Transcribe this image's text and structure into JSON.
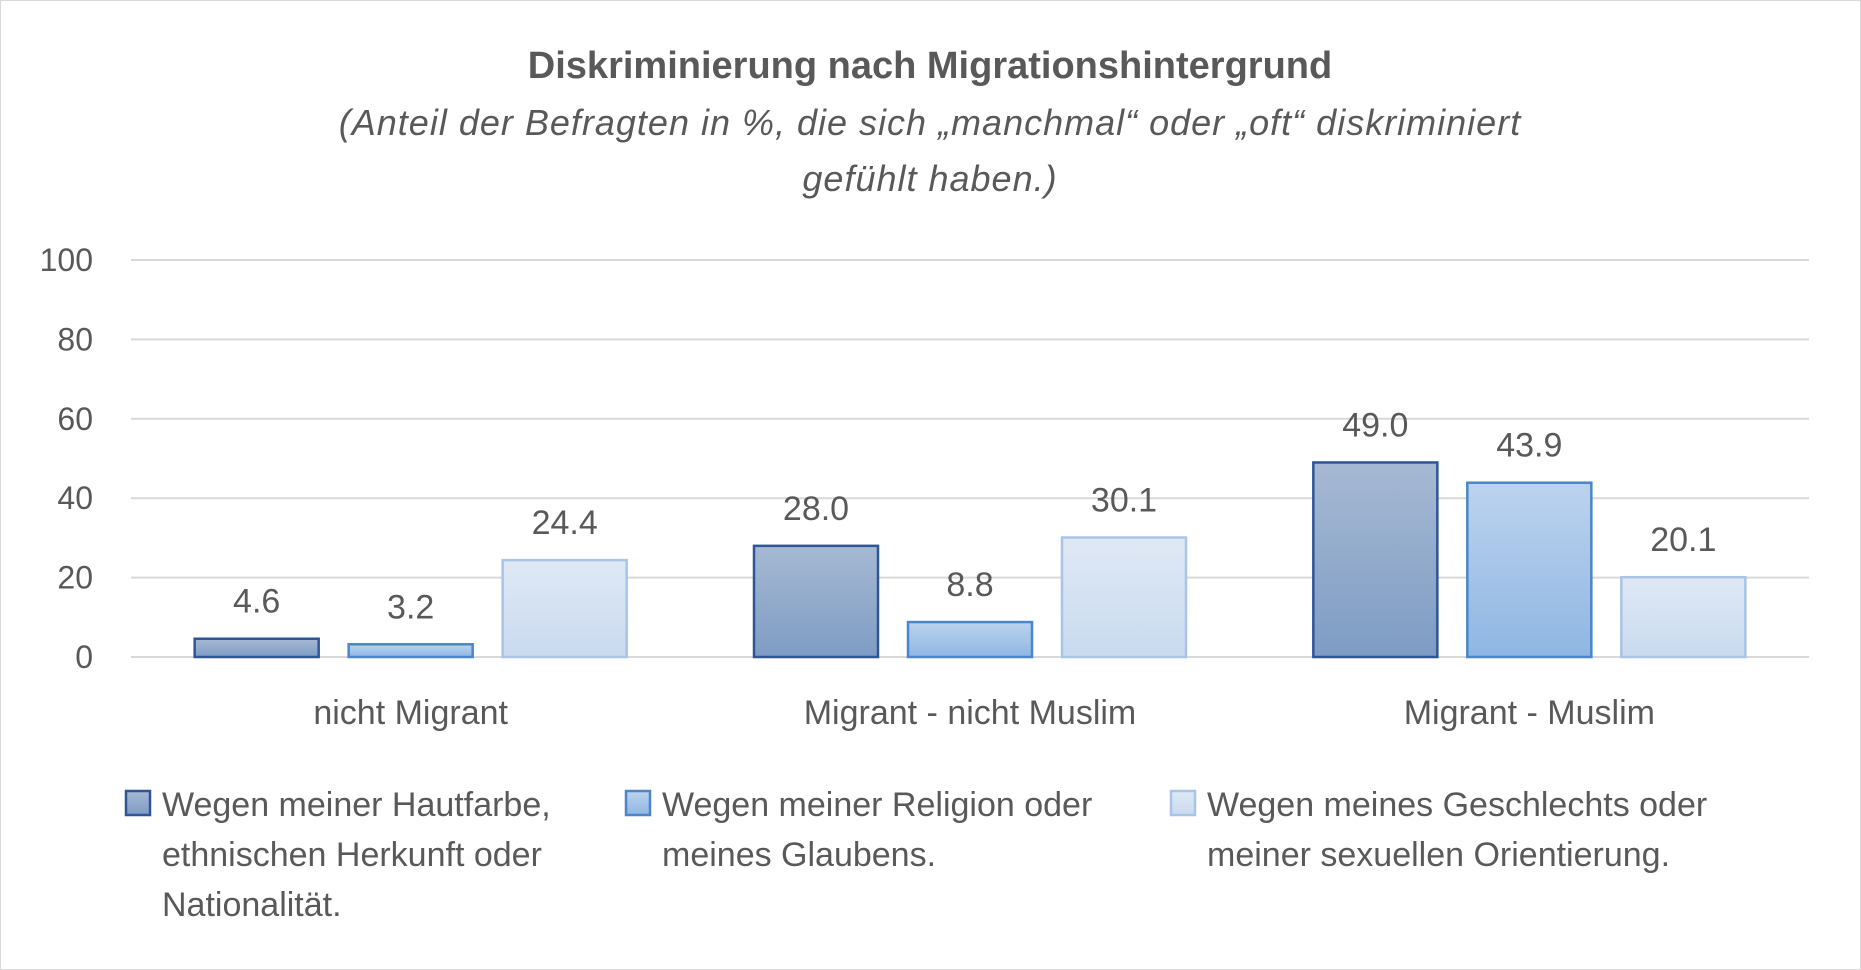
{
  "chart_data": {
    "type": "bar",
    "title": "Diskriminierung nach Migrationshintergrund",
    "subtitle_lines": [
      "(Anteil der Befragten in %, die sich „manchmal“ oder „oft“ diskriminiert",
      "gefühlt haben.)"
    ],
    "categories": [
      "nicht Migrant",
      "Migrant - nicht Muslim",
      "Migrant - Muslim"
    ],
    "ylim": [
      0,
      100
    ],
    "yticks": [
      0,
      20,
      40,
      60,
      80,
      100
    ],
    "grid": true,
    "legend_position": "bottom",
    "series": [
      {
        "name": "Wegen meiner Hautfarbe, ethnischen Herkunft oder Nationalität.",
        "legend_lines": [
          "Wegen meiner Hautfarbe,",
          "ethnischen Herkunft oder",
          "Nationalität."
        ],
        "values": [
          4.6,
          28.0,
          49.0
        ],
        "value_labels": [
          "4.6",
          "28.0",
          "49.0"
        ],
        "color_top": "#a6b9d3",
        "color_bottom": "#7e9cc4",
        "stroke": "#2f5597"
      },
      {
        "name": "Wegen meiner Religion oder meines Glaubens.",
        "legend_lines": [
          "Wegen meiner Religion oder",
          "meines Glaubens."
        ],
        "values": [
          3.2,
          8.8,
          43.9
        ],
        "value_labels": [
          "3.2",
          "8.8",
          "43.9"
        ],
        "color_top": "#bcd3ee",
        "color_bottom": "#8fb6e3",
        "stroke": "#4a86c8"
      },
      {
        "name": "Wegen meines Geschlechts oder meiner sexuellen Orientierung.",
        "legend_lines": [
          "Wegen meines Geschlechts oder",
          "meiner sexuellen Orientierung."
        ],
        "values": [
          24.4,
          30.1,
          20.1
        ],
        "value_labels": [
          "24.4",
          "30.1",
          "20.1"
        ],
        "color_top": "#dfe9f5",
        "color_bottom": "#c9daef",
        "stroke": "#a9c4e6"
      }
    ]
  }
}
